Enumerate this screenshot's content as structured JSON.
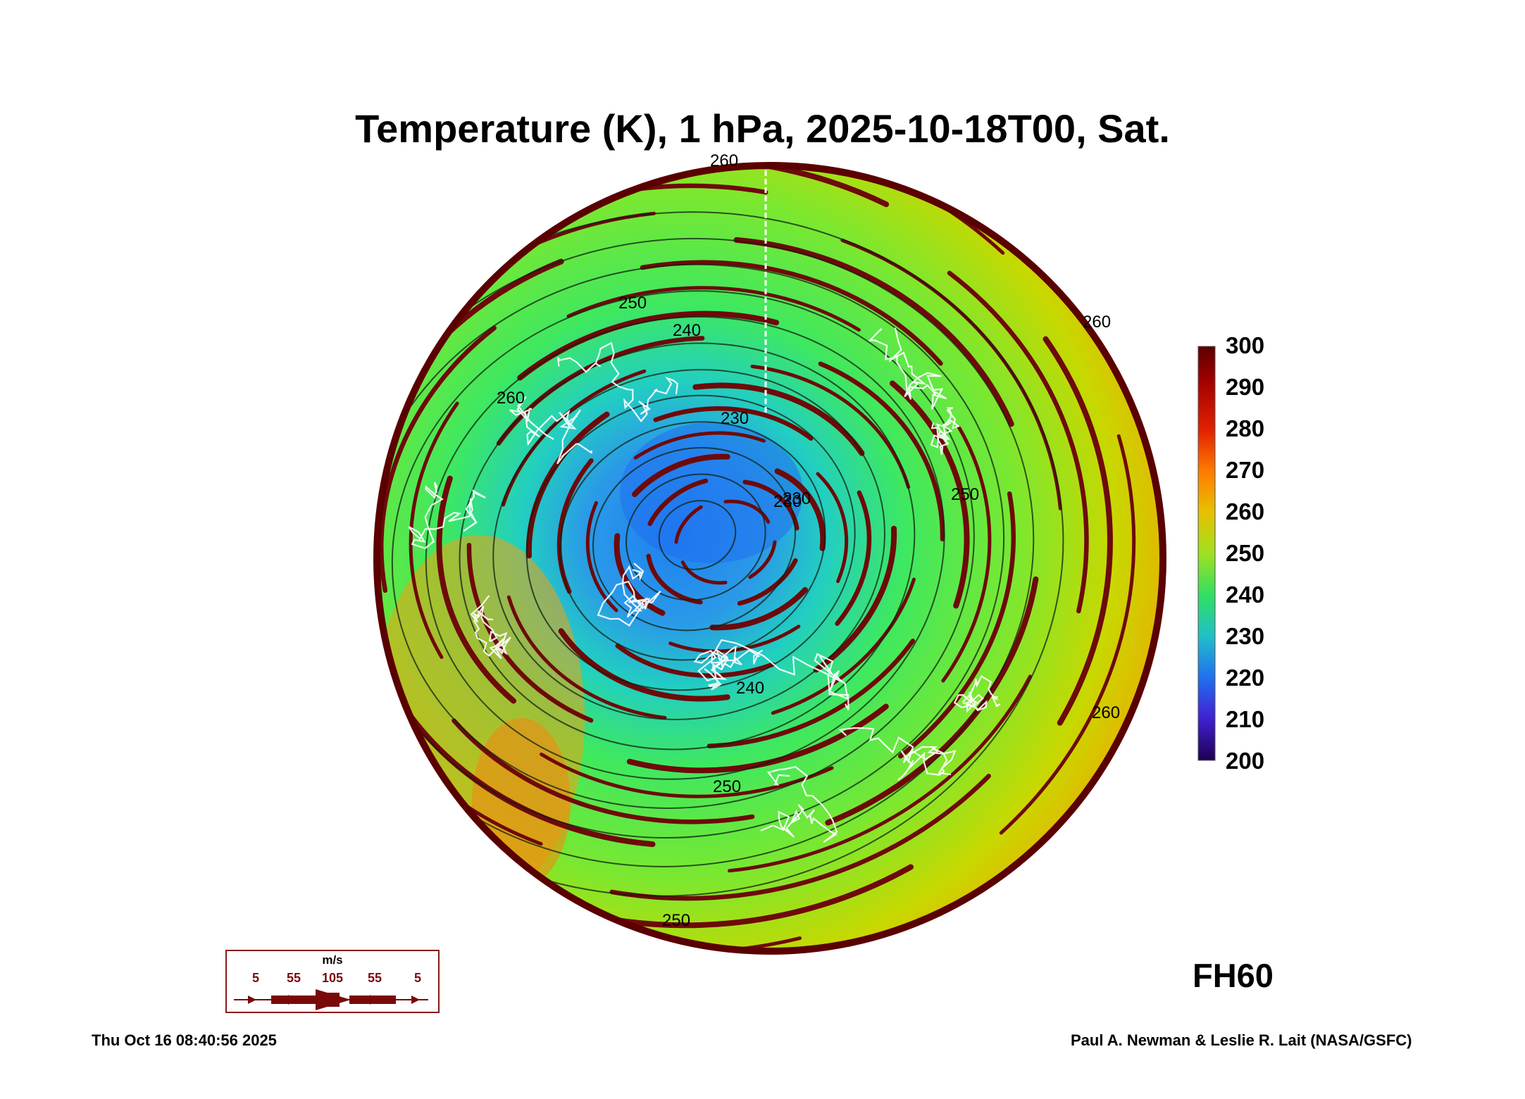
{
  "title": "Temperature (K), 1 hPa, 2025-10-18T00, Sat.",
  "colorbar": {
    "ticks": [
      "300",
      "290",
      "280",
      "270",
      "260",
      "250",
      "240",
      "230",
      "220",
      "210",
      "200"
    ],
    "stops": [
      "#7a0000",
      "#a80000",
      "#e02000",
      "#ff7000",
      "#e8b000",
      "#c8d800",
      "#50f030",
      "#20e0a0",
      "#20a0f0",
      "#2050e8",
      "#5010c0",
      "#200060"
    ]
  },
  "contour_labels": [
    "260",
    "250",
    "240",
    "230",
    "230",
    "230",
    "240",
    "250",
    "250",
    "260",
    "260",
    "250",
    "260"
  ],
  "wind_legend": {
    "unit": "m/s",
    "values": [
      "5",
      "55",
      "105",
      "55",
      "5"
    ]
  },
  "forecast_hour": "FH60",
  "footer": {
    "date": "Thu Oct 16 08:40:56 2025",
    "credit": "Paul A. Newman & Leslie R. Lait (NASA/GSFC)"
  }
}
